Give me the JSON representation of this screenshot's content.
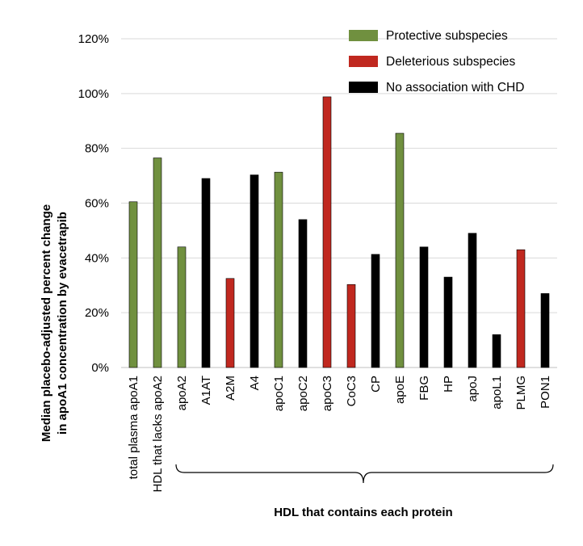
{
  "chart_data": {
    "type": "bar",
    "ylabel_line1": "Median placebo-adjusted percent change",
    "ylabel_line2": "in apoA1 concentration by evacetrapib",
    "ylim": [
      0,
      120
    ],
    "yticks": [
      "0%",
      "20%",
      "40%",
      "60%",
      "80%",
      "100%",
      "120%"
    ],
    "ytick_values": [
      0,
      20,
      40,
      60,
      80,
      100,
      120
    ],
    "grid": true,
    "categories": [
      "total plasma apoA1",
      "HDL that lacks apoA2",
      "apoA2",
      "A1AT",
      "A2M",
      "A4",
      "apoC1",
      "apoC2",
      "apoC3",
      "CoC3",
      "CP",
      "apoE",
      "FBG",
      "HP",
      "apoJ",
      "apoL1",
      "PLMG",
      "PON1"
    ],
    "values": [
      60.5,
      76.5,
      44,
      69,
      32.5,
      70.3,
      71.3,
      54,
      98.8,
      30.3,
      41.3,
      85.5,
      44,
      33,
      49,
      12,
      43,
      27
    ],
    "groups": [
      "protective",
      "protective",
      "protective",
      "none",
      "deleterious",
      "none",
      "protective",
      "none",
      "deleterious",
      "deleterious",
      "none",
      "protective",
      "none",
      "none",
      "none",
      "none",
      "deleterious",
      "none"
    ],
    "legend": [
      {
        "key": "protective",
        "label": "Protective subspecies",
        "color": "#70903f"
      },
      {
        "key": "deleterious",
        "label": "Deleterious subspecies",
        "color": "#c0281f"
      },
      {
        "key": "none",
        "label": "No association with CHD",
        "color": "#000000"
      }
    ],
    "legend_position": "top-right",
    "brace_label": "HDL that contains each protein"
  }
}
